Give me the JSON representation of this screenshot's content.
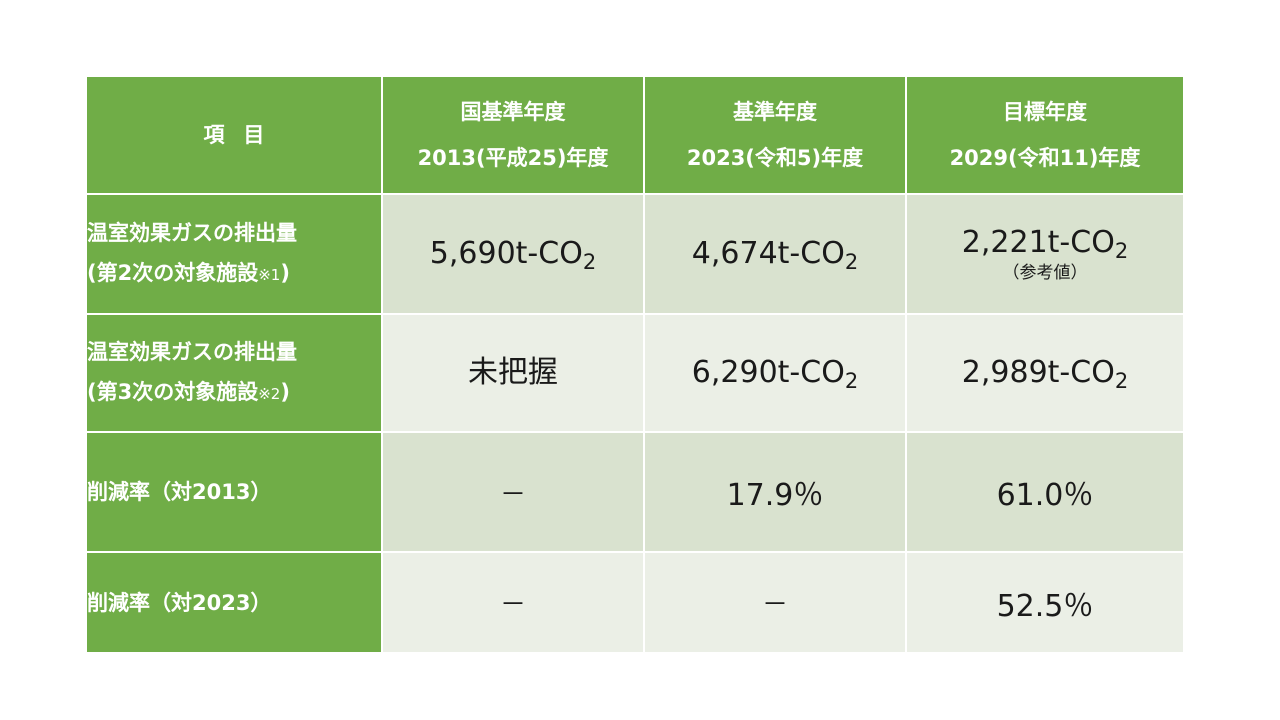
{
  "table": {
    "header": {
      "item": "項目",
      "col1": {
        "line1": "国基準年度",
        "line2": "2013(平成25)年度"
      },
      "col2": {
        "line1": "基準年度",
        "line2": "2023(令和5)年度"
      },
      "col3": {
        "line1": "目標年度",
        "line2": "2029(令和11)年度"
      }
    },
    "rows": [
      {
        "label_line1": "温室効果ガスの排出量",
        "label_line2_text": "(第2次の対象施設",
        "label_note": "※1",
        "label_close": ")",
        "v2013": {
          "num": "5,690t-CO",
          "sub": "2"
        },
        "v2023": {
          "num": "4,674t-CO",
          "sub": "2"
        },
        "v2029": {
          "num": "2,221t-CO",
          "sub": "2",
          "ref": "（参考値）"
        }
      },
      {
        "label_line1": "温室効果ガスの排出量",
        "label_line2_text": "(第3次の対象施設",
        "label_note": "※2",
        "label_close": ")",
        "v2013": {
          "text": "未把握"
        },
        "v2023": {
          "num": "6,290t-CO",
          "sub": "2"
        },
        "v2029": {
          "num": "2,989t-CO",
          "sub": "2"
        }
      },
      {
        "label": "削減率（対2013）",
        "v2013": "－",
        "v2023": "17.9％",
        "v2029": "61.0％"
      },
      {
        "label": "削減率（対2023）",
        "v2013": "－",
        "v2023": "－",
        "v2029": "52.5％"
      }
    ]
  },
  "colors": {
    "header_green": "#70ad47",
    "row_shade_dark": "#d9e2cf",
    "row_shade_light": "#ebefe6"
  }
}
